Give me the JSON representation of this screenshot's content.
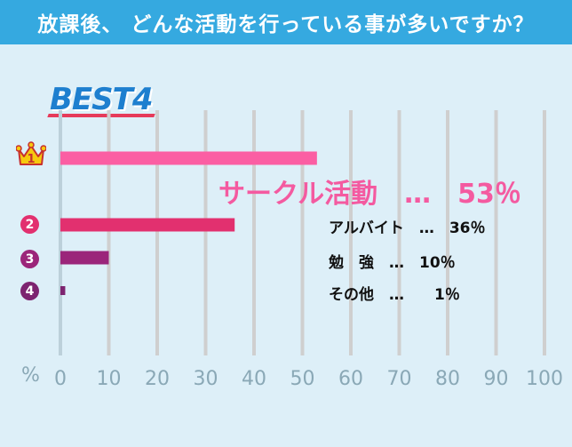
{
  "header": {
    "title": "放課後、 どんな活動を行っている事が多いですか？"
  },
  "badge": {
    "text": "BEST4"
  },
  "chart_data": {
    "type": "bar",
    "orientation": "horizontal",
    "title": "放課後、 どんな活動を行っている事が多いですか？",
    "categories": [
      "サークル活動",
      "アルバイト",
      "勉　強",
      "その他"
    ],
    "values": [
      53,
      36,
      10,
      1
    ],
    "ranks": [
      "1",
      "2",
      "3",
      "4"
    ],
    "colors": [
      "#fb5ea3",
      "#e2306f",
      "#9b257a",
      "#7d2470"
    ],
    "xlabel": "%",
    "xlim": [
      0,
      100
    ],
    "xticks": [
      "0",
      "10",
      "20",
      "30",
      "40",
      "50",
      "60",
      "70",
      "80",
      "90",
      "100"
    ],
    "labels": [
      "サークル活動　…　53％",
      "アルバイト　…　36％",
      "勉　強　…　10％",
      "その他　…　　1％"
    ],
    "grid": true
  }
}
